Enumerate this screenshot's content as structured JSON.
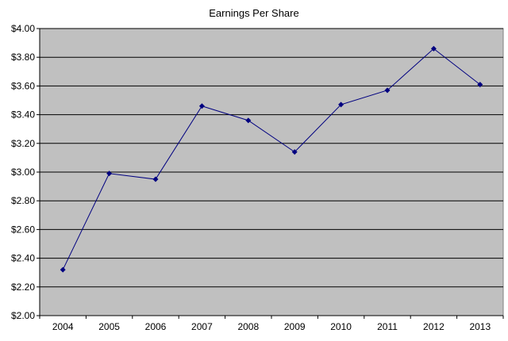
{
  "chart_data": {
    "type": "line",
    "title": "Earnings Per Share",
    "xlabel": "",
    "ylabel": "",
    "categories": [
      "2004",
      "2005",
      "2006",
      "2007",
      "2008",
      "2009",
      "2010",
      "2011",
      "2012",
      "2013"
    ],
    "series": [
      {
        "values": [
          2.32,
          2.99,
          2.95,
          3.46,
          3.36,
          3.14,
          3.47,
          3.57,
          3.86,
          3.61
        ]
      }
    ],
    "ylim": [
      2.0,
      4.0
    ],
    "y_ticks": [
      "$2.00",
      "$2.20",
      "$2.40",
      "$2.60",
      "$2.80",
      "$3.00",
      "$3.20",
      "$3.40",
      "$3.60",
      "$3.80",
      "$4.00"
    ],
    "y_tick_values": [
      2.0,
      2.2,
      2.4,
      2.6,
      2.8,
      3.0,
      3.2,
      3.4,
      3.6,
      3.8,
      4.0
    ],
    "grid": true,
    "legend": "none",
    "colors": {
      "plot_background": "#c0c0c0",
      "line": "#000080",
      "gridline": "#000000"
    }
  }
}
